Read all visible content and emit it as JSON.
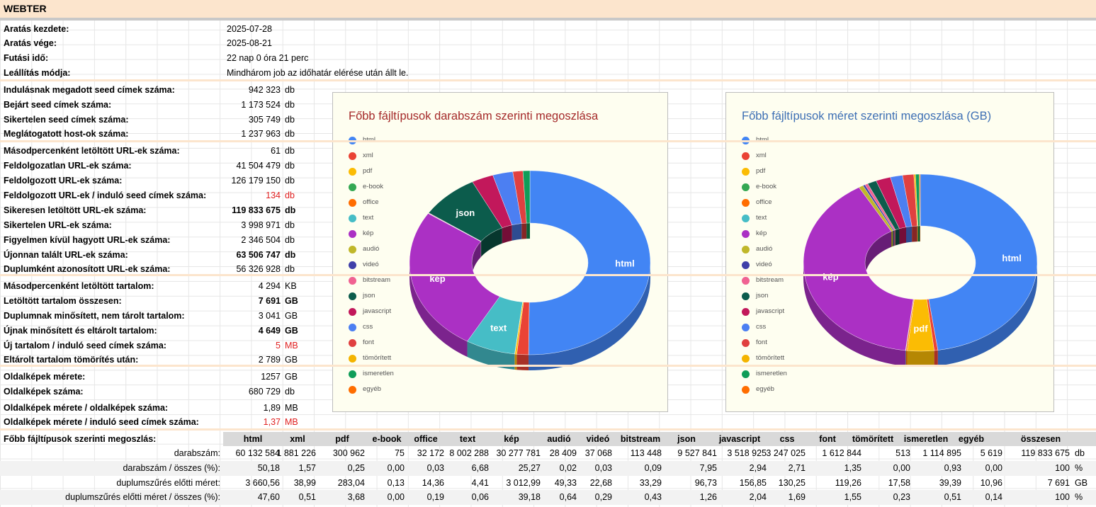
{
  "title": "WEBTER",
  "info": [
    {
      "label": "Aratás kezdete:",
      "value": "2025-07-28"
    },
    {
      "label": "Aratás vége:",
      "value": "2025-08-21"
    },
    {
      "label": "Futási idő:",
      "value": "22 nap 0 óra 21 perc"
    },
    {
      "label": "Leállítás módja:",
      "value": "Mindhárom job az időhatár elérése után állt le."
    }
  ],
  "stats": [
    {
      "label": "Indulásnak megadott seed címek száma:",
      "value": "942 323",
      "unit": "db"
    },
    {
      "label": "Bejárt seed címek száma:",
      "value": "1 173 524",
      "unit": "db"
    },
    {
      "label": "Sikertelen seed címek száma:",
      "value": "305 749",
      "unit": "db"
    },
    {
      "label": "Meglátogatott host-ok száma:",
      "value": "1 237 963",
      "unit": "db"
    },
    {
      "label": "Másodpercenként letöltött URL-ek száma:",
      "value": "61",
      "unit": "db"
    },
    {
      "label": "Feldolgozatlan URL-ek száma:",
      "value": "41 504 479",
      "unit": "db"
    },
    {
      "label": "Feldolgozott URL-ek száma:",
      "value": "126 179 150",
      "unit": "db"
    },
    {
      "label": "Feldolgozott URL-ek / induló seed címek száma:",
      "value": "134",
      "unit": "db",
      "red": true
    },
    {
      "label": "Sikeresen letöltött URL-ek száma:",
      "value": "119 833 675",
      "unit": "db",
      "bold": true
    },
    {
      "label": "Sikertelen URL-ek száma:",
      "value": "3 998 971",
      "unit": "db"
    },
    {
      "label": "Figyelmen kívül hagyott URL-ek száma:",
      "value": "2 346 504",
      "unit": "db"
    },
    {
      "label": "Újonnan talált URL-ek száma:",
      "value": "63 506 747",
      "unit": "db",
      "bold": true
    },
    {
      "label": "Duplumként azonosított URL-ek száma:",
      "value": "56 326 928",
      "unit": "db"
    },
    {
      "label": "Másodpercenként letöltött tartalom:",
      "value": "4 294",
      "unit": "KB"
    },
    {
      "label": "Letöltött tartalom összesen:",
      "value": "7 691",
      "unit": "GB",
      "bold": true
    },
    {
      "label": "Duplumnak minősített, nem tárolt tartalom:",
      "value": "3 041",
      "unit": "GB"
    },
    {
      "label": "Újnak minősített és eltárolt tartalom:",
      "value": "4 649",
      "unit": "GB",
      "bold": true
    },
    {
      "label": "Új tartalom / induló seed címek száma:",
      "value": "5",
      "unit": "MB",
      "red": true
    },
    {
      "label": "Eltárolt tartalom tömörítés után:",
      "value": "2 789",
      "unit": "GB"
    },
    {
      "label": "Oldalképek mérete:",
      "value": "1257",
      "unit": "GB"
    },
    {
      "label": "Oldalképek száma:",
      "value": "680 729",
      "unit": "db"
    },
    {
      "label": "Oldalképek mérete  / oldalképek száma:",
      "value": "1,89",
      "unit": "MB"
    },
    {
      "label": "Oldalképek mérete  / induló seed címek száma:",
      "value": "1,37",
      "unit": "MB",
      "red": true
    }
  ],
  "table": {
    "label": "Főbb fájltípusok szerinti megoszlás:",
    "headers": [
      "html",
      "xml",
      "pdf",
      "e-book",
      "office",
      "text",
      "kép",
      "audió",
      "videó",
      "bitstream",
      "json",
      "javascript",
      "css",
      "font",
      "tömörített",
      "ismeretlen",
      "egyéb",
      "összesen"
    ],
    "rows": [
      {
        "label": "darabszám:",
        "unit": "db",
        "values": [
          "60 132 584",
          "1 881 226",
          "300 962",
          "75",
          "32 172",
          "8 002 288",
          "30 277 781",
          "28 409",
          "37 068",
          "113 448",
          "9 527 841",
          "3 518 925",
          "3 247 025",
          "1 612 844",
          "513",
          "1 114 895",
          "5 619",
          "119 833 675"
        ]
      },
      {
        "label": "darabszám / összes (%):",
        "unit": "%",
        "values": [
          "50,18",
          "1,57",
          "0,25",
          "0,00",
          "0,03",
          "6,68",
          "25,27",
          "0,02",
          "0,03",
          "0,09",
          "7,95",
          "2,94",
          "2,71",
          "1,35",
          "0,00",
          "0,93",
          "0,00",
          "100"
        ]
      },
      {
        "label": "duplumszűrés előtti méret:",
        "unit": "GB",
        "values": [
          "3 660,56",
          "38,99",
          "283,04",
          "0,13",
          "14,36",
          "4,41",
          "3 012,99",
          "49,33",
          "22,68",
          "33,29",
          "96,73",
          "156,85",
          "130,25",
          "119,26",
          "17,58",
          "39,39",
          "10,96",
          "7 691"
        ]
      },
      {
        "label": "duplumszűrés előtti méret / összes (%):",
        "unit": "%",
        "values": [
          "47,60",
          "0,51",
          "3,68",
          "0,00",
          "0,19",
          "0,06",
          "39,18",
          "0,64",
          "0,29",
          "0,43",
          "1,26",
          "2,04",
          "1,69",
          "1,55",
          "0,23",
          "0,51",
          "0,14",
          "100"
        ]
      }
    ]
  },
  "chart_data": [
    {
      "type": "pie",
      "title": "Főbb fájltípusok darabszám szerinti megoszlása",
      "title_color": "#a52a2a",
      "categories": [
        "html",
        "xml",
        "pdf",
        "e-book",
        "office",
        "text",
        "kép",
        "audió",
        "videó",
        "bitstream",
        "json",
        "javascript",
        "css",
        "font",
        "tömörített",
        "ismeretlen",
        "egyéb"
      ],
      "values": [
        50.18,
        1.57,
        0.25,
        0.0,
        0.03,
        6.68,
        25.27,
        0.02,
        0.03,
        0.09,
        7.95,
        2.94,
        2.71,
        1.35,
        0.0,
        0.93,
        0.0
      ],
      "slice_labels": {
        "html": "html",
        "kép": "kép",
        "json": "json",
        "text": "text"
      }
    },
    {
      "type": "pie",
      "title": "Főbb fájltípusok méret szerinti megoszlása (GB)",
      "title_color": "#3d6fb4",
      "categories": [
        "html",
        "xml",
        "pdf",
        "e-book",
        "office",
        "text",
        "kép",
        "audió",
        "videó",
        "bitstream",
        "json",
        "javascript",
        "css",
        "font",
        "tömörített",
        "ismeretlen",
        "egyéb"
      ],
      "values": [
        3660.56,
        38.99,
        283.04,
        0.13,
        14.36,
        4.41,
        3012.99,
        49.33,
        22.68,
        33.29,
        96.73,
        156.85,
        130.25,
        119.26,
        17.58,
        39.39,
        10.96
      ],
      "slice_labels": {
        "html": "html",
        "kép": "kép",
        "pdf": "pdf"
      }
    }
  ],
  "colors": [
    "#4285f4",
    "#ea4335",
    "#fbbc04",
    "#34a853",
    "#ff6d01",
    "#46bdc6",
    "#ab30c4",
    "#c0b72a",
    "#3f3fa8",
    "#f06292",
    "#0c5c4c",
    "#c2185b",
    "#4c7ff2",
    "#e04040",
    "#f4b400",
    "#0f9d58",
    "#ff6d00"
  ]
}
